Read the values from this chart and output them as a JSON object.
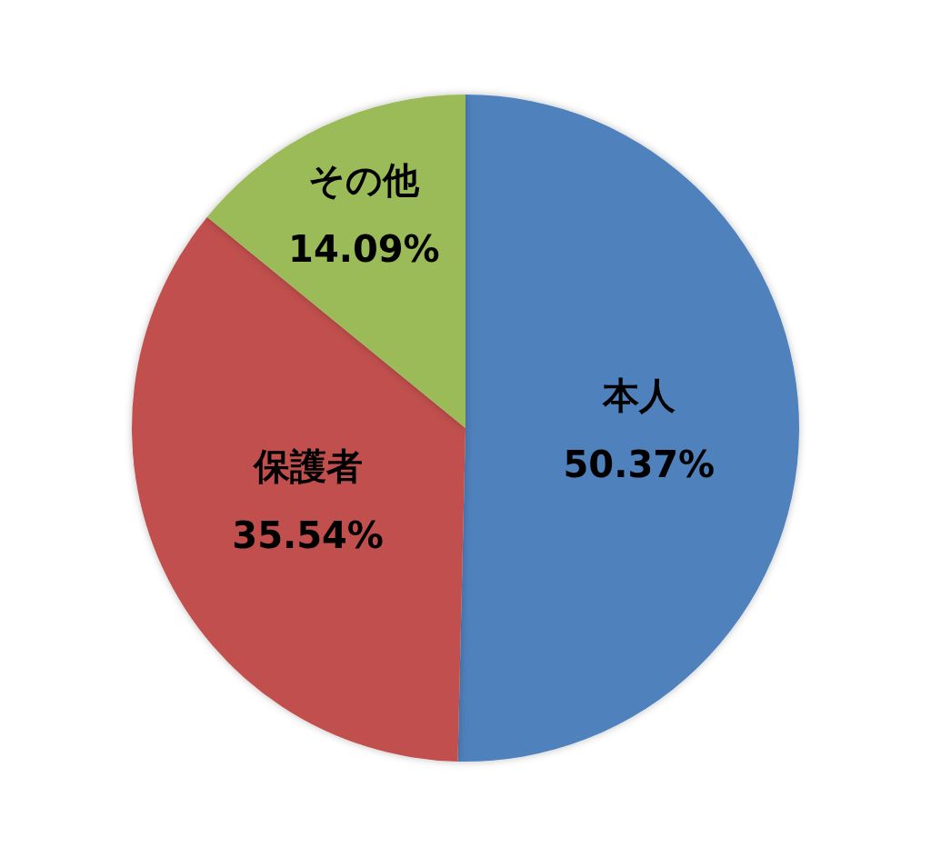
{
  "chart_data": {
    "type": "pie",
    "categories": [
      "本人",
      "保護者",
      "その他"
    ],
    "values": [
      50.37,
      35.54,
      14.09
    ],
    "colors": [
      "#4f81bd",
      "#c0504d",
      "#9bbb59"
    ],
    "value_labels": [
      "50.37%",
      "35.54%",
      "14.09%"
    ]
  }
}
